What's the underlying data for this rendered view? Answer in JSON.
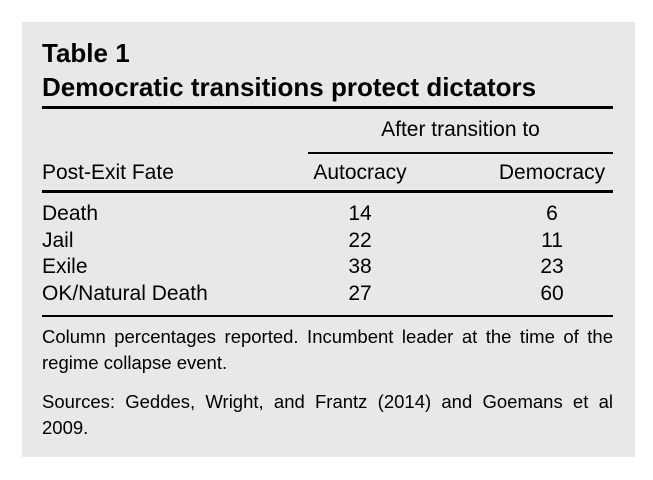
{
  "header": {
    "label": "Table 1",
    "title": "Democratic transitions protect dictators"
  },
  "table": {
    "group_header": "After transition to",
    "columns": [
      "Post-Exit Fate",
      "Autocracy",
      "Democracy"
    ],
    "rows": [
      [
        "Death",
        14,
        6
      ],
      [
        "Jail",
        22,
        11
      ],
      [
        "Exile",
        38,
        23
      ],
      [
        "OK/Natural Death",
        27,
        60
      ]
    ]
  },
  "notes": [
    "Column percentages reported. Incumbent leader at the time of the regime collapse event.",
    "Sources: Geddes, Wright, and Frantz (2014) and Goemans et al 2009."
  ]
}
